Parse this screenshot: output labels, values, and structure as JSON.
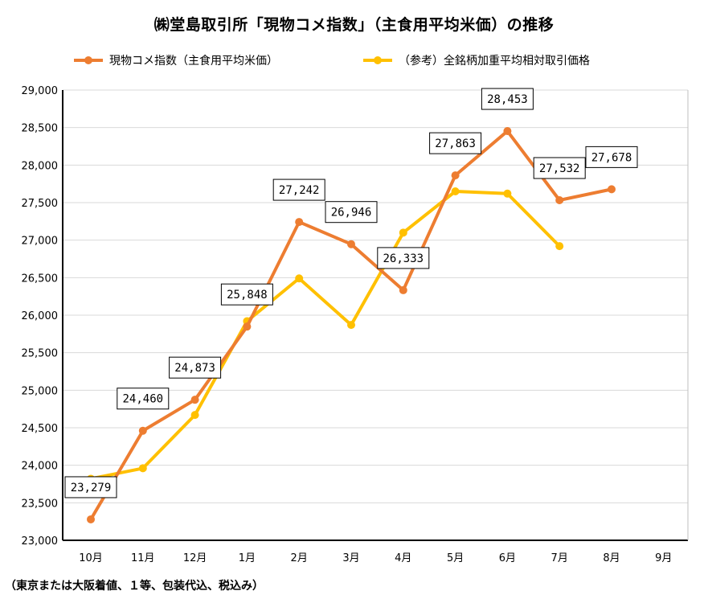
{
  "chart_data": {
    "type": "line",
    "title": "㈱堂島取引所「現物コメ指数」（主食用平均米価）の推移",
    "categories": [
      "10月",
      "11月",
      "12月",
      "1月",
      "2月",
      "3月",
      "4月",
      "5月",
      "6月",
      "7月",
      "8月",
      "9月"
    ],
    "yticks": [
      "23,000",
      "23,500",
      "24,000",
      "24,500",
      "25,000",
      "25,500",
      "26,000",
      "26,500",
      "27,000",
      "27,500",
      "28,000",
      "28,500",
      "29,000"
    ],
    "ylim": [
      23000,
      29000
    ],
    "grid": true,
    "legend_position": "top",
    "series": [
      {
        "name": "現物コメ指数（主食用平均米価）",
        "color": "#ED7D31",
        "values": [
          23279,
          24460,
          24873,
          25848,
          27242,
          26946,
          26333,
          27863,
          28453,
          27532,
          27678,
          null
        ],
        "data_labels": [
          "23,279",
          "24,460",
          "24,873",
          "25,848",
          "27,242",
          "26,946",
          "26,333",
          "27,863",
          "28,453",
          "27,532",
          "27,678",
          null
        ]
      },
      {
        "name": "（参考）全銘柄加重平均相対取引価格",
        "color": "#FFC000",
        "values": [
          23820,
          23960,
          24670,
          25920,
          26490,
          25870,
          27100,
          27650,
          27620,
          26920,
          null,
          null
        ],
        "data_labels": [
          null,
          null,
          null,
          null,
          null,
          null,
          null,
          null,
          null,
          null,
          null,
          null
        ]
      }
    ]
  },
  "footnote": "（東京または大阪着値、１等、包装代込、税込み）"
}
